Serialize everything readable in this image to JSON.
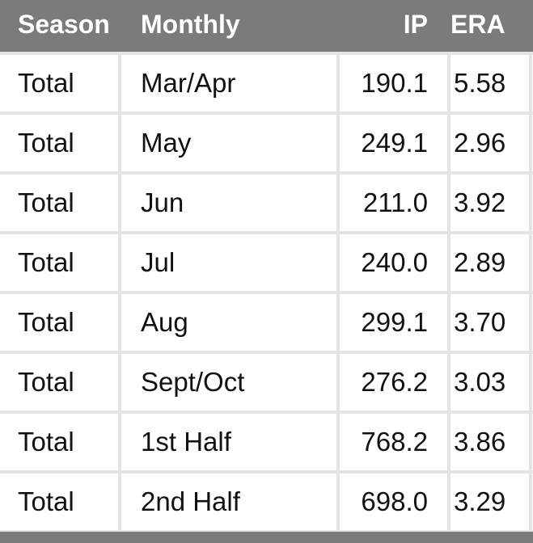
{
  "table": {
    "header": [
      "Season",
      "Monthly",
      "IP",
      "ERA"
    ],
    "rows": [
      [
        "Total",
        "Mar/Apr",
        "190.1",
        "5.58"
      ],
      [
        "Total",
        "May",
        "249.1",
        "2.96"
      ],
      [
        "Total",
        "Jun",
        "211.0",
        "3.92"
      ],
      [
        "Total",
        "Jul",
        "240.0",
        "2.89"
      ],
      [
        "Total",
        "Aug",
        "299.1",
        "3.70"
      ],
      [
        "Total",
        "Sept/Oct",
        "276.2",
        "3.03"
      ],
      [
        "Total",
        "1st Half",
        "768.2",
        "3.86"
      ],
      [
        "Total",
        "2nd Half",
        "698.0",
        "3.29"
      ]
    ]
  }
}
